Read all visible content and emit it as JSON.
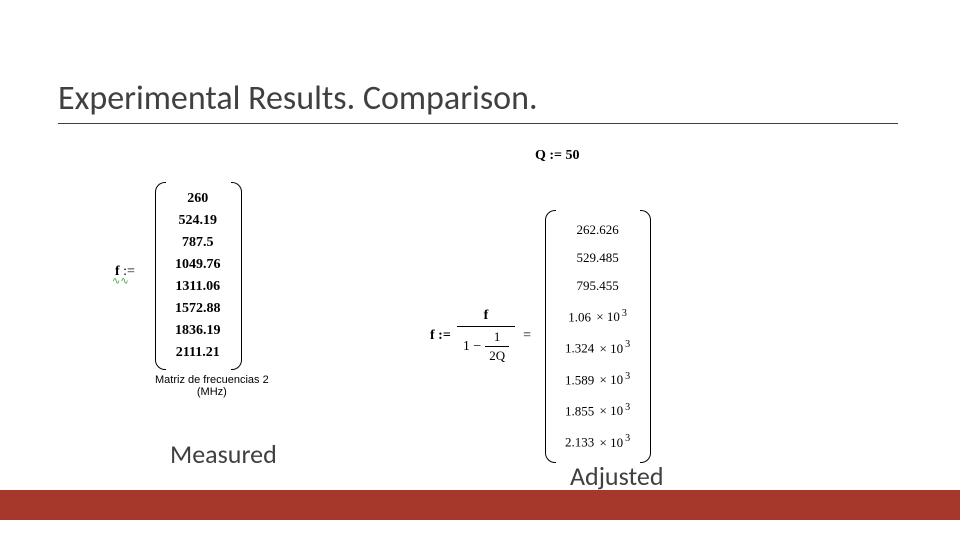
{
  "title": "Experimental Results. Comparison.",
  "q": {
    "label": "Q := 50"
  },
  "measured": {
    "assign_prefix": "f",
    "assign_symbol": ":=",
    "squiggle": "∿∿",
    "values": [
      "260",
      "524.19",
      "787.5",
      "1049.76",
      "1311.06",
      "1572.88",
      "1836.19",
      "2111.21"
    ],
    "caption_line1": "Matriz de frecuencias 2",
    "caption_line2": "(MHz)",
    "label": "Measured"
  },
  "formula": {
    "lhs": "f :=",
    "numerator": "f",
    "den_lead": "1 −",
    "inner_num": "1",
    "inner_den": "2Q",
    "equals": "="
  },
  "adjusted": {
    "rows_plain": [
      "262.626",
      "529.485",
      "795.455"
    ],
    "rows_sci": [
      {
        "mant": "1.06",
        "exp": "3"
      },
      {
        "mant": "1.324",
        "exp": "3"
      },
      {
        "mant": "1.589",
        "exp": "3"
      },
      {
        "mant": "1.855",
        "exp": "3"
      },
      {
        "mant": "2.133",
        "exp": "3"
      }
    ],
    "label": "Adjusted"
  },
  "style": {
    "accent_bar_color": "#a6382b",
    "bg": "#ffffff"
  }
}
